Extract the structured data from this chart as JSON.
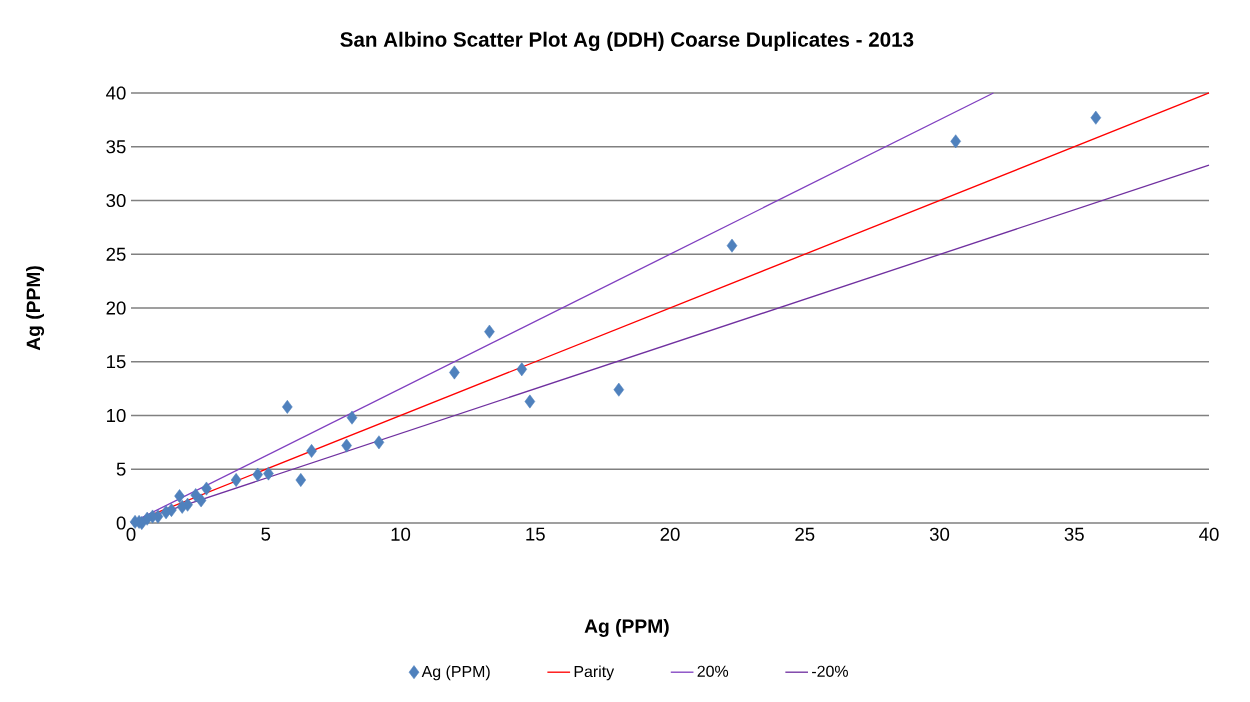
{
  "chart_data": {
    "type": "scatter",
    "title": "San Albino Scatter Plot Ag (DDH) Coarse Duplicates - 2013",
    "xlabel": "Ag (PPM)",
    "ylabel": "Ag (PPM)",
    "xlim": [
      0,
      40
    ],
    "ylim": [
      0,
      40
    ],
    "xticks": [
      0,
      5,
      10,
      15,
      20,
      25,
      30,
      35,
      40
    ],
    "yticks": [
      0,
      5,
      10,
      15,
      20,
      25,
      30,
      35,
      40
    ],
    "grid": "y",
    "legend": "bottom",
    "series": [
      {
        "name": "Ag (PPM)",
        "marker": "diamond",
        "color": "#4f81bd",
        "x": [
          35.8,
          30.6,
          22.3,
          18.1,
          14.8,
          14.5,
          13.3,
          12.0,
          9.2,
          8.2,
          8.0,
          6.7,
          6.3,
          5.8,
          5.1,
          4.7,
          3.9,
          2.8,
          2.6,
          2.4,
          2.1,
          1.9,
          1.8,
          1.5,
          1.3,
          1.0,
          0.8,
          0.6,
          0.4,
          0.3,
          0.15
        ],
        "values": [
          37.7,
          35.5,
          25.8,
          12.4,
          11.3,
          14.3,
          17.8,
          14.0,
          7.5,
          9.8,
          7.2,
          6.7,
          4.0,
          10.8,
          4.6,
          4.5,
          4.0,
          3.2,
          2.1,
          2.6,
          1.7,
          1.5,
          2.5,
          1.2,
          1.0,
          0.6,
          0.6,
          0.4,
          0.0,
          0.1,
          0.1
        ]
      },
      {
        "name": "Parity",
        "type": "line",
        "marker": "none",
        "color": "#ff0000",
        "x": [
          0,
          40
        ],
        "values": [
          0,
          40
        ]
      },
      {
        "name": "20%",
        "type": "line",
        "marker": "none",
        "color": "#8040c0",
        "x": [
          0,
          32
        ],
        "values": [
          0,
          40
        ]
      },
      {
        "name": "-20%",
        "type": "line",
        "marker": "none",
        "color": "#7030a0",
        "x": [
          0,
          40
        ],
        "values": [
          0,
          33.3
        ]
      }
    ]
  }
}
